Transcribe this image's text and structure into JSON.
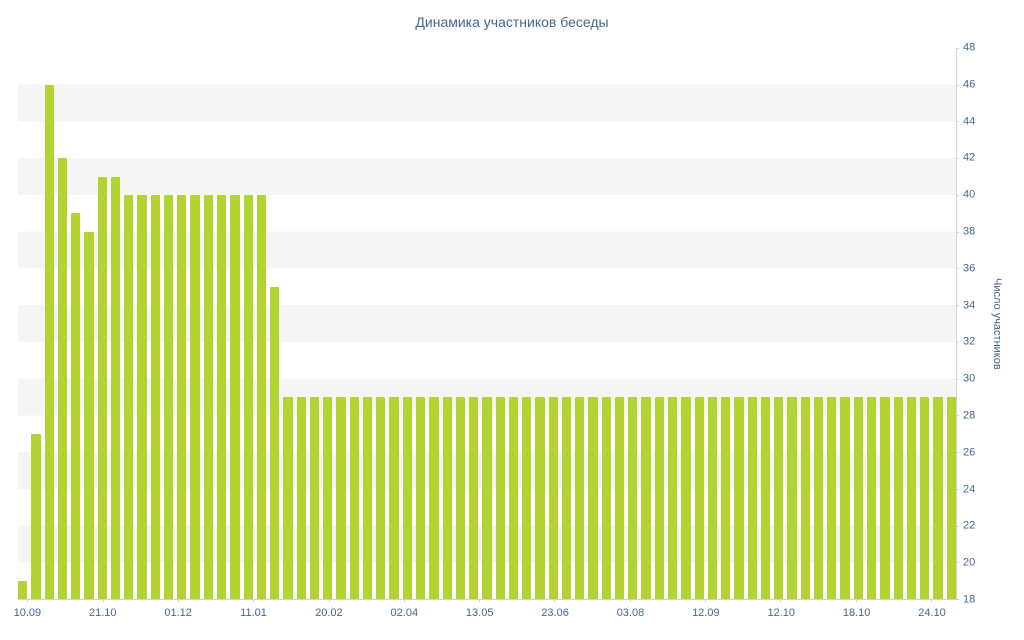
{
  "page": {
    "background": "#ffffff"
  },
  "chart_data": {
    "type": "bar",
    "title": "Динамика участников беседы",
    "xlabel": "",
    "ylabel": "Число участников",
    "ylim": [
      18,
      48
    ],
    "ytick_step": 2,
    "grid": "striped-horizontal-bands",
    "legend": "none",
    "x_tick_labels": [
      "10.09",
      "21.10",
      "01.12",
      "11.01",
      "20.02",
      "02.04",
      "13.05",
      "23.06",
      "03.08",
      "12.09",
      "12.10",
      "18.10",
      "24.10"
    ],
    "x_tick_layout": {
      "first_pct": 1.0,
      "step_pct": 8.028
    },
    "values": [
      19,
      27,
      46,
      42,
      39,
      38,
      41,
      41,
      40,
      40,
      40,
      40,
      40,
      40,
      40,
      40,
      40,
      40,
      40,
      35,
      29,
      29,
      29,
      29,
      29,
      29,
      29,
      29,
      29,
      29,
      29,
      29,
      29,
      29,
      29,
      29,
      29,
      29,
      29,
      29,
      29,
      29,
      29,
      29,
      29,
      29,
      29,
      29,
      29,
      29,
      29,
      29,
      29,
      29,
      29,
      29,
      29,
      29,
      29,
      29,
      29,
      29,
      29,
      29,
      29,
      29,
      29,
      29,
      29,
      29,
      29
    ],
    "colors": {
      "bar": "#b1d433",
      "title": "#45688e",
      "axis_text": "#45688e",
      "axis_line": "#cbd5de",
      "stripe": "#f5f5f5",
      "background": "#ffffff"
    }
  }
}
